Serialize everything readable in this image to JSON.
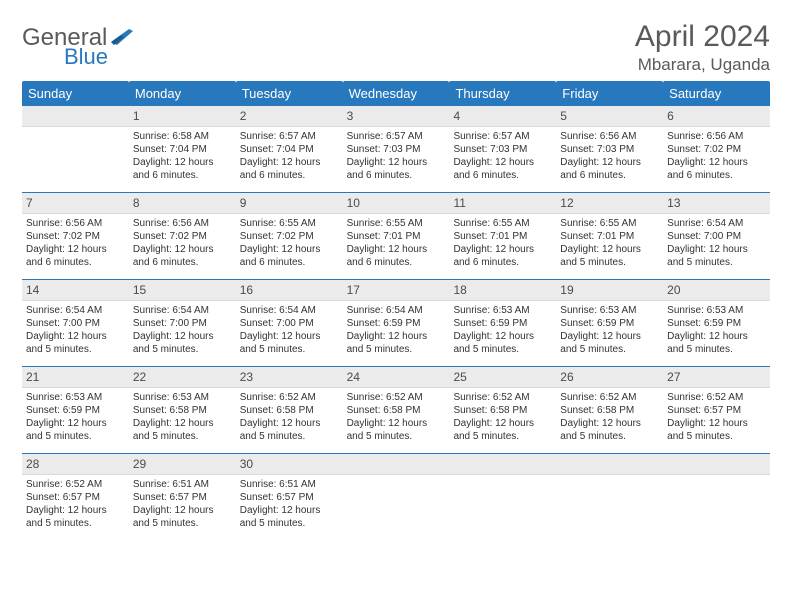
{
  "brand": {
    "word1": "General",
    "word2": "Blue"
  },
  "title": "April 2024",
  "location": "Mbarara, Uganda",
  "accent_color": "#2878bd",
  "header_text_color": "#5a5a5a",
  "daybar_bg": "#ebebeb",
  "day_headers": [
    "Sunday",
    "Monday",
    "Tuesday",
    "Wednesday",
    "Thursday",
    "Friday",
    "Saturday"
  ],
  "weeks": [
    [
      {
        "n": "",
        "sr": "",
        "ss": "",
        "dl": ""
      },
      {
        "n": "1",
        "sr": "6:58 AM",
        "ss": "7:04 PM",
        "dl": "12 hours and 6 minutes."
      },
      {
        "n": "2",
        "sr": "6:57 AM",
        "ss": "7:04 PM",
        "dl": "12 hours and 6 minutes."
      },
      {
        "n": "3",
        "sr": "6:57 AM",
        "ss": "7:03 PM",
        "dl": "12 hours and 6 minutes."
      },
      {
        "n": "4",
        "sr": "6:57 AM",
        "ss": "7:03 PM",
        "dl": "12 hours and 6 minutes."
      },
      {
        "n": "5",
        "sr": "6:56 AM",
        "ss": "7:03 PM",
        "dl": "12 hours and 6 minutes."
      },
      {
        "n": "6",
        "sr": "6:56 AM",
        "ss": "7:02 PM",
        "dl": "12 hours and 6 minutes."
      }
    ],
    [
      {
        "n": "7",
        "sr": "6:56 AM",
        "ss": "7:02 PM",
        "dl": "12 hours and 6 minutes."
      },
      {
        "n": "8",
        "sr": "6:56 AM",
        "ss": "7:02 PM",
        "dl": "12 hours and 6 minutes."
      },
      {
        "n": "9",
        "sr": "6:55 AM",
        "ss": "7:02 PM",
        "dl": "12 hours and 6 minutes."
      },
      {
        "n": "10",
        "sr": "6:55 AM",
        "ss": "7:01 PM",
        "dl": "12 hours and 6 minutes."
      },
      {
        "n": "11",
        "sr": "6:55 AM",
        "ss": "7:01 PM",
        "dl": "12 hours and 6 minutes."
      },
      {
        "n": "12",
        "sr": "6:55 AM",
        "ss": "7:01 PM",
        "dl": "12 hours and 5 minutes."
      },
      {
        "n": "13",
        "sr": "6:54 AM",
        "ss": "7:00 PM",
        "dl": "12 hours and 5 minutes."
      }
    ],
    [
      {
        "n": "14",
        "sr": "6:54 AM",
        "ss": "7:00 PM",
        "dl": "12 hours and 5 minutes."
      },
      {
        "n": "15",
        "sr": "6:54 AM",
        "ss": "7:00 PM",
        "dl": "12 hours and 5 minutes."
      },
      {
        "n": "16",
        "sr": "6:54 AM",
        "ss": "7:00 PM",
        "dl": "12 hours and 5 minutes."
      },
      {
        "n": "17",
        "sr": "6:54 AM",
        "ss": "6:59 PM",
        "dl": "12 hours and 5 minutes."
      },
      {
        "n": "18",
        "sr": "6:53 AM",
        "ss": "6:59 PM",
        "dl": "12 hours and 5 minutes."
      },
      {
        "n": "19",
        "sr": "6:53 AM",
        "ss": "6:59 PM",
        "dl": "12 hours and 5 minutes."
      },
      {
        "n": "20",
        "sr": "6:53 AM",
        "ss": "6:59 PM",
        "dl": "12 hours and 5 minutes."
      }
    ],
    [
      {
        "n": "21",
        "sr": "6:53 AM",
        "ss": "6:59 PM",
        "dl": "12 hours and 5 minutes."
      },
      {
        "n": "22",
        "sr": "6:53 AM",
        "ss": "6:58 PM",
        "dl": "12 hours and 5 minutes."
      },
      {
        "n": "23",
        "sr": "6:52 AM",
        "ss": "6:58 PM",
        "dl": "12 hours and 5 minutes."
      },
      {
        "n": "24",
        "sr": "6:52 AM",
        "ss": "6:58 PM",
        "dl": "12 hours and 5 minutes."
      },
      {
        "n": "25",
        "sr": "6:52 AM",
        "ss": "6:58 PM",
        "dl": "12 hours and 5 minutes."
      },
      {
        "n": "26",
        "sr": "6:52 AM",
        "ss": "6:58 PM",
        "dl": "12 hours and 5 minutes."
      },
      {
        "n": "27",
        "sr": "6:52 AM",
        "ss": "6:57 PM",
        "dl": "12 hours and 5 minutes."
      }
    ],
    [
      {
        "n": "28",
        "sr": "6:52 AM",
        "ss": "6:57 PM",
        "dl": "12 hours and 5 minutes."
      },
      {
        "n": "29",
        "sr": "6:51 AM",
        "ss": "6:57 PM",
        "dl": "12 hours and 5 minutes."
      },
      {
        "n": "30",
        "sr": "6:51 AM",
        "ss": "6:57 PM",
        "dl": "12 hours and 5 minutes."
      },
      {
        "n": "",
        "sr": "",
        "ss": "",
        "dl": ""
      },
      {
        "n": "",
        "sr": "",
        "ss": "",
        "dl": ""
      },
      {
        "n": "",
        "sr": "",
        "ss": "",
        "dl": ""
      },
      {
        "n": "",
        "sr": "",
        "ss": "",
        "dl": ""
      }
    ]
  ],
  "labels": {
    "sunrise": "Sunrise:",
    "sunset": "Sunset:",
    "daylight": "Daylight:"
  }
}
